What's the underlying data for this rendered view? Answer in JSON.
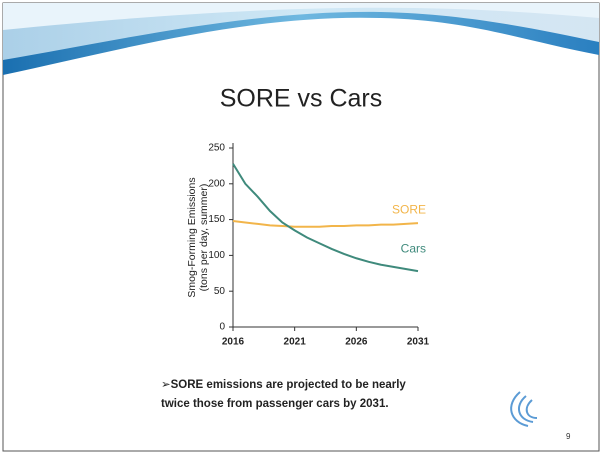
{
  "chart_data": {
    "type": "line",
    "title": "SORE vs Cars",
    "ylabel": [
      "Smog-Forming Emissions",
      "(tons per day, summer)"
    ],
    "x": [
      2016,
      2017,
      2018,
      2019,
      2020,
      2021,
      2022,
      2023,
      2024,
      2025,
      2026,
      2027,
      2028,
      2029,
      2030,
      2031
    ],
    "series": [
      {
        "name": "SORE",
        "color": "#f2b54a",
        "values": [
          148,
          146,
          144,
          142,
          141,
          140,
          140,
          140,
          141,
          141,
          142,
          142,
          143,
          143,
          144,
          145
        ]
      },
      {
        "name": "Cars",
        "color": "#3f8a7c",
        "values": [
          228,
          200,
          182,
          162,
          146,
          135,
          125,
          117,
          109,
          102,
          96,
          91,
          87,
          84,
          81,
          78
        ]
      }
    ],
    "xlim": [
      2016,
      2031
    ],
    "xticks": [
      2016,
      2021,
      2026,
      2031
    ],
    "ylim": [
      0,
      250
    ],
    "yticks": [
      0,
      50,
      100,
      150,
      200,
      250
    ],
    "grid": false
  },
  "bullet": [
    "➢SORE emissions are projected to be nearly",
    "twice those from passenger cars by 2031."
  ],
  "slide_number": "9"
}
